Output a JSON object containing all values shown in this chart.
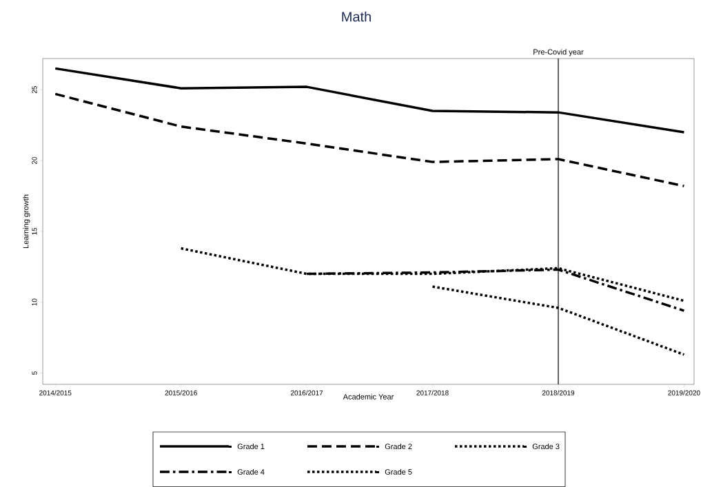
{
  "chart_data": {
    "type": "line",
    "title": "Math",
    "xlabel": "Academic Year",
    "ylabel": "Learning growth",
    "categories": [
      "2014/2015",
      "2015/2016",
      "2016/2017",
      "2017/2018",
      "2018/2019",
      "2019/2020"
    ],
    "series": [
      {
        "name": "Grade 1",
        "color": "#000000",
        "line_style": "solid",
        "values": [
          26.5,
          25.1,
          25.2,
          23.5,
          23.4,
          22.0
        ]
      },
      {
        "name": "Grade 2",
        "color": "#000000",
        "line_style": "dashed",
        "values": [
          24.7,
          22.4,
          21.2,
          19.9,
          20.1,
          18.2
        ]
      },
      {
        "name": "Grade 3",
        "color": "#000000",
        "line_style": "dotted",
        "values": [
          null,
          13.8,
          12.0,
          12.0,
          12.4,
          10.1
        ]
      },
      {
        "name": "Grade 4",
        "color": "#000000",
        "line_style": "dashdot",
        "values": [
          null,
          null,
          12.0,
          12.1,
          12.3,
          9.4
        ]
      },
      {
        "name": "Grade 5",
        "color": "#000000",
        "line_style": "dotted",
        "values": [
          null,
          null,
          null,
          11.1,
          9.6,
          6.3
        ]
      }
    ],
    "ylim": [
      4.2,
      27.2
    ],
    "yticks": [
      5,
      10,
      15,
      20,
      25
    ],
    "ref_lines": [
      {
        "axis": "x",
        "value": "2018/2019",
        "label": "Pre-Covid year",
        "color": "#000000"
      }
    ],
    "grid": false,
    "legend": "bottom",
    "marker": "none"
  }
}
